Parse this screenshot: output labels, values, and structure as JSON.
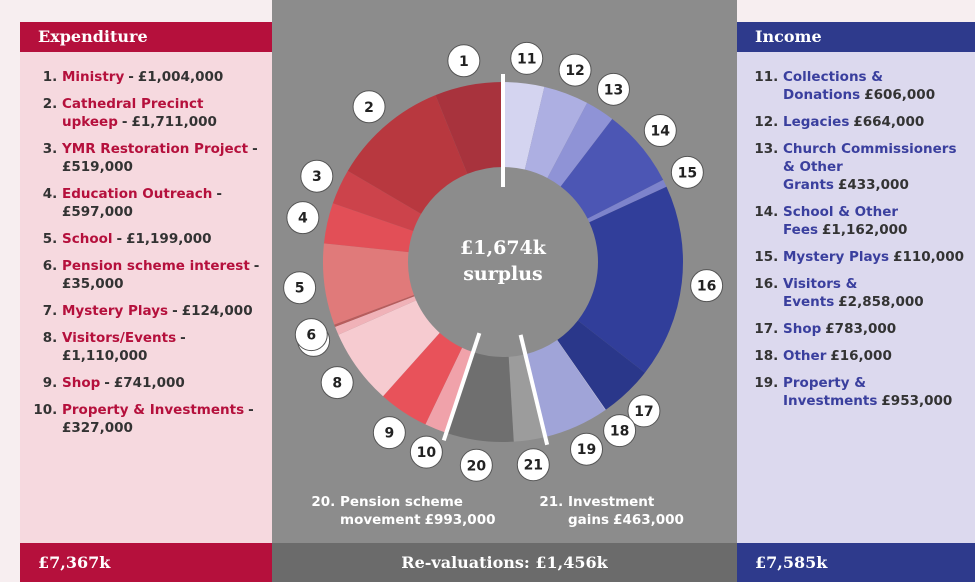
{
  "chart_data": {
    "type": "donut",
    "center_label": "£1,674k",
    "center_sublabel": "surplus",
    "groups": [
      {
        "title": "Expenditure",
        "total": "£7,367k",
        "separator": "-",
        "name_color": "#b5103c",
        "ids": [
          1,
          2,
          3,
          4,
          5,
          6,
          7,
          8,
          9,
          10
        ],
        "names": [
          "Ministry",
          "Cathedral Precinct upkeep",
          "YMR Restoration Project",
          "Education Outreach",
          "School",
          "Pension scheme interest",
          "Mystery Plays",
          "Visitors/Events",
          "Shop",
          "Property & Investments"
        ],
        "values": [
          1004000,
          1711000,
          519000,
          597000,
          1199000,
          35000,
          124000,
          1110000,
          741000,
          327000
        ],
        "value_labels": [
          "£1,004,000",
          "£1,711,000",
          "£519,000",
          "£597,000",
          "£1,199,000",
          "£35,000",
          "£124,000",
          "£1,110,000",
          "£741,000",
          "£327,000"
        ],
        "colors": [
          "#a8333d",
          "#b8383f",
          "#cc434b",
          "#e24f57",
          "#e07a7a",
          "#b85c5c",
          "#f0b2b8",
          "#f6cbd0",
          "#e8525a",
          "#f0a2aa"
        ]
      },
      {
        "title": "Income",
        "total": "£7,585k",
        "name_color": "#3a3f9e",
        "ids": [
          11,
          12,
          13,
          14,
          15,
          16,
          17,
          18,
          19
        ],
        "names": [
          "Collections & Donations",
          "Legacies",
          "Church Commissioners & Other Grants",
          "School & Other Fees",
          "Mystery Plays",
          "Visitors & Events",
          "Shop",
          "Other",
          "Property & Investments"
        ],
        "values": [
          606000,
          664000,
          433000,
          1162000,
          110000,
          2858000,
          783000,
          16000,
          953000
        ],
        "value_labels": [
          "£606,000",
          "£664,000",
          "£433,000",
          "£1,162,000",
          "£110,000",
          "£2,858,000",
          "£783,000",
          "£16,000",
          "£953,000"
        ],
        "colors": [
          "#d4d4f0",
          "#adafe2",
          "#8f93d6",
          "#4c56b4",
          "#7d83cc",
          "#313e9a",
          "#2a378a",
          "#b2b5e2",
          "#a0a4d8"
        ]
      },
      {
        "total": "Re-valuations: £1,456k",
        "name_color": "#ffffff",
        "ids": [
          20,
          21
        ],
        "names": [
          "Pension scheme movement",
          "Investment gains"
        ],
        "values": [
          993000,
          463000
        ],
        "value_labels": [
          "£993,000",
          "£463,000"
        ],
        "colors": [
          "#6f6f6f",
          "#9c9c9c"
        ]
      }
    ]
  }
}
